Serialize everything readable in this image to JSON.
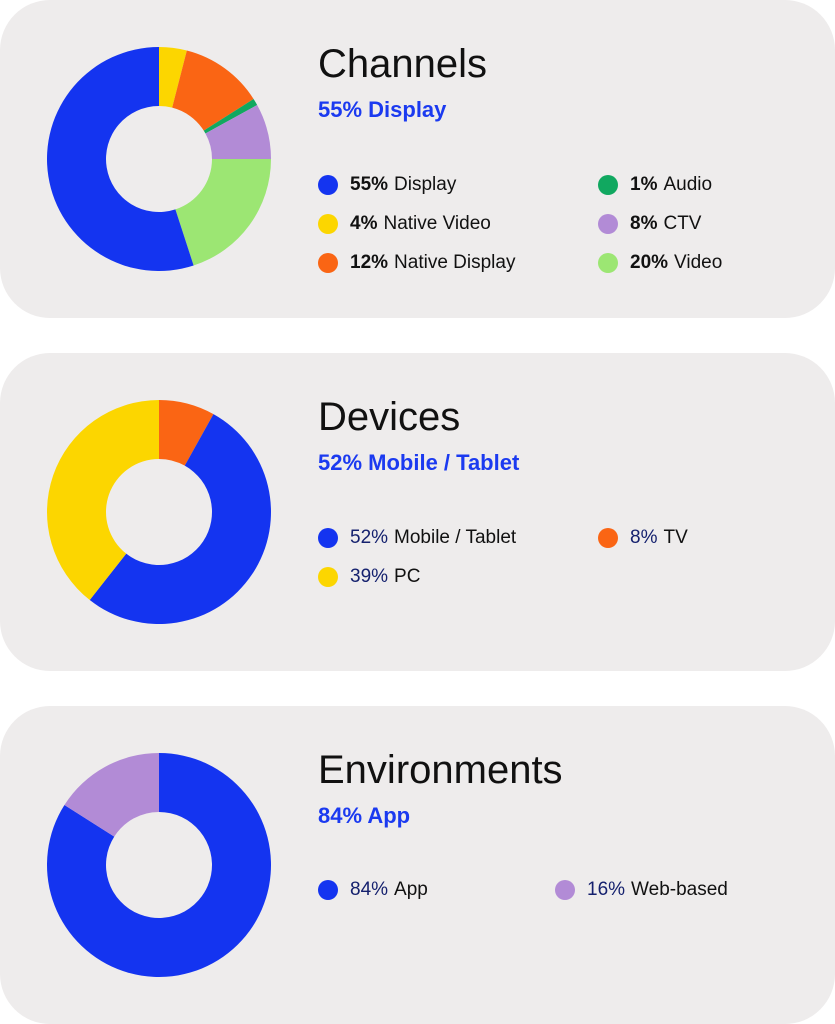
{
  "colors": {
    "accent": "#1b3af0",
    "card_bg": "#eeecec",
    "text": "#111111",
    "navy": "#15216e"
  },
  "chart_data": [
    {
      "type": "pie",
      "title": "Channels",
      "subtitle": "55% Display",
      "donut": true,
      "categories": [
        "Display",
        "Native Video",
        "Native Display",
        "Audio",
        "CTV",
        "Video"
      ],
      "values": [
        55,
        4,
        12,
        1,
        8,
        20
      ],
      "legend": [
        {
          "value": "55%",
          "label": "Display",
          "color": "#1434f0"
        },
        {
          "value": "4%",
          "label": "Native Video",
          "color": "#fcd600"
        },
        {
          "value": "12%",
          "label": "Native Display",
          "color": "#fa6514"
        },
        {
          "value": "1%",
          "label": "Audio",
          "color": "#11a860"
        },
        {
          "value": "8%",
          "label": "CTV",
          "color": "#b28bd6"
        },
        {
          "value": "20%",
          "label": "Video",
          "color": "#9ce673"
        }
      ],
      "slice_order": [
        1,
        2,
        3,
        4,
        5,
        0
      ]
    },
    {
      "type": "pie",
      "title": "Devices",
      "subtitle": "52% Mobile / Tablet",
      "donut": true,
      "categories": [
        "Mobile / Tablet",
        "TV",
        "PC"
      ],
      "values": [
        52,
        8,
        39
      ],
      "legend": [
        {
          "value": "52%",
          "label": "Mobile / Tablet",
          "color": "#1434f0"
        },
        {
          "value": "8%",
          "label": "TV",
          "color": "#fa6514"
        },
        {
          "value": "39%",
          "label": "PC",
          "color": "#fcd600"
        }
      ],
      "slice_order": [
        1,
        0,
        2
      ]
    },
    {
      "type": "pie",
      "title": "Environments",
      "subtitle": "84% App",
      "donut": true,
      "categories": [
        "App",
        "Web-based"
      ],
      "values": [
        84,
        16
      ],
      "legend": [
        {
          "value": "84%",
          "label": "App",
          "color": "#1434f0"
        },
        {
          "value": "16%",
          "label": "Web-based",
          "color": "#b28bd6"
        }
      ],
      "slice_order": [
        0,
        1
      ]
    }
  ]
}
